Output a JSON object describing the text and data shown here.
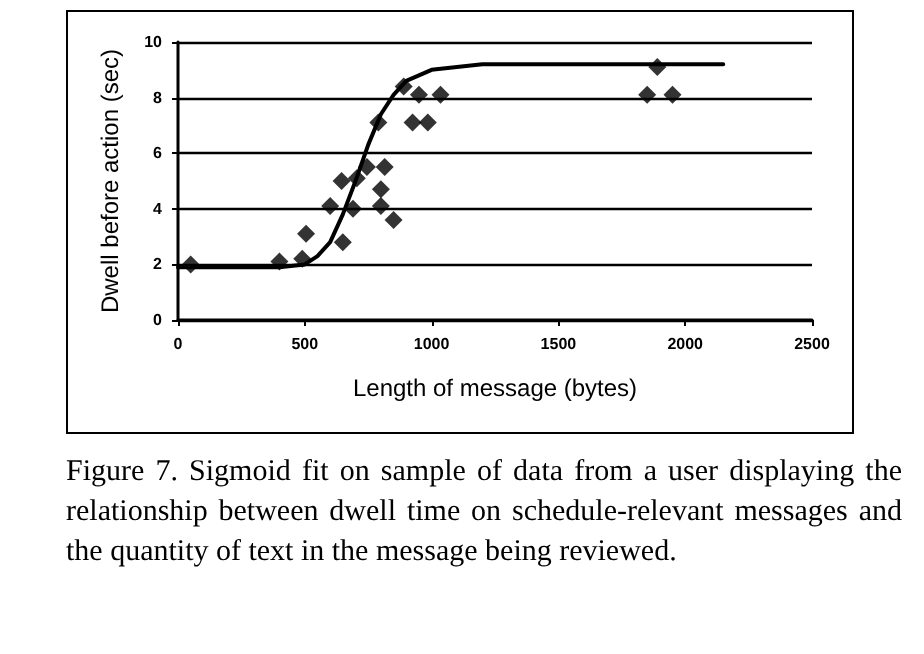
{
  "chart_data": {
    "type": "scatter",
    "xlabel": "Length of message (bytes)",
    "ylabel": "Dwell before action (sec)",
    "xlim": [
      0,
      2500
    ],
    "xticks": [
      0,
      500,
      1000,
      1500,
      2000,
      2500
    ],
    "ylim": [
      0,
      10
    ],
    "yticks": [
      0,
      2,
      4,
      6,
      8,
      10
    ],
    "grid": "y",
    "series": [
      {
        "marker": "diamond",
        "color": "#000000",
        "x": [
          50,
          400,
          490,
          505,
          600,
          645,
          650,
          690,
          705,
          745,
          790,
          800,
          800,
          815,
          850,
          890,
          925,
          950,
          985,
          1035,
          1850,
          1890,
          1950
        ],
        "values": [
          2.0,
          2.1,
          2.2,
          3.1,
          4.1,
          5.0,
          2.8,
          4.0,
          5.1,
          5.5,
          7.1,
          4.7,
          4.1,
          5.5,
          3.6,
          8.4,
          7.1,
          8.1,
          7.1,
          8.1,
          8.1,
          9.1,
          8.1
        ]
      },
      {
        "type": "line",
        "marker": "none",
        "line_style": "solid",
        "color": "#000000",
        "x": [
          0,
          400,
          500,
          550,
          600,
          650,
          700,
          750,
          800,
          850,
          900,
          1000,
          1200,
          1500,
          2150
        ],
        "values": [
          1.9,
          1.9,
          2.0,
          2.3,
          2.8,
          3.8,
          5.0,
          6.3,
          7.4,
          8.1,
          8.6,
          9.0,
          9.2,
          9.2,
          9.2
        ]
      }
    ],
    "annotations": [
      "Figure 7. Sigmoid fit on sample of data from a user displaying the relationship between dwell time on schedule-relevant messages and the quantity of text in the message being reviewed."
    ]
  }
}
